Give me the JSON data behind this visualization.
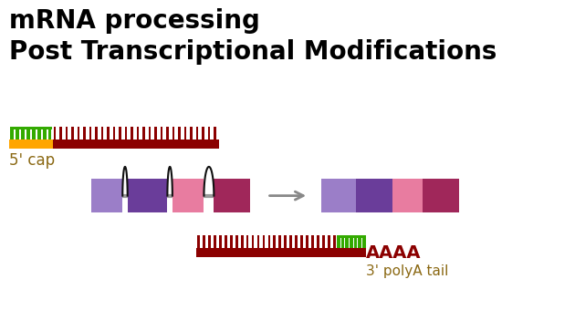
{
  "title_line1": "mRNA processing",
  "title_line2": "Post Transcriptional Modifications",
  "title_fontsize": 20,
  "bg_color": "#ffffff",
  "cap_label": "5' cap",
  "cap_label_color": "#8B6914",
  "cap_label_fontsize": 12,
  "polya_label": "AAAA",
  "polya_label2": "3' polyA tail",
  "polya_label_color": "#8B0000",
  "polya_label_fontsize": 13,
  "polya_label2_color": "#8B6914",
  "polya_label2_fontsize": 11,
  "cap_color_orange": "#FFA500",
  "cap_color_green": "#33AA00",
  "cap_color_dark_red": "#8B0000",
  "exon_colors": [
    "#9B7EC8",
    "#6A3D9A",
    "#E87CA0",
    "#A0275A"
  ],
  "intron_color": "#999999",
  "arrow_color": "#888888",
  "loop_color": "#111111"
}
